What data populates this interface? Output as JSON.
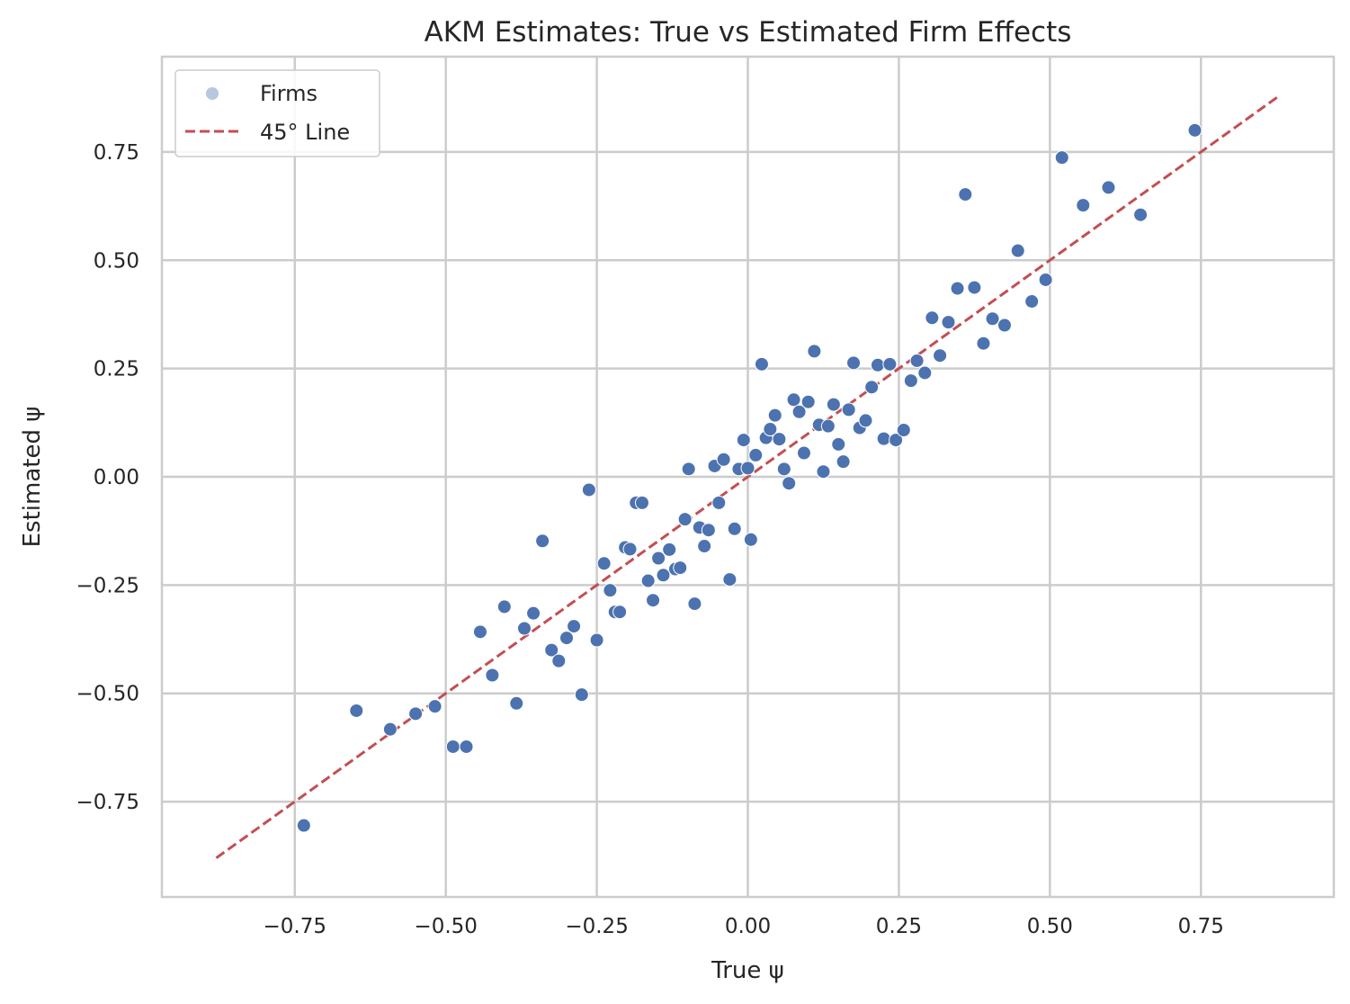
{
  "chart_data": {
    "type": "scatter",
    "title": "AKM Estimates: True vs Estimated Firm Effects",
    "xlabel": "True ψ",
    "ylabel": "Estimated ψ",
    "xlim": [
      -0.97,
      0.97
    ],
    "ylim": [
      -0.97,
      0.97
    ],
    "xticks": [
      -0.75,
      -0.5,
      -0.25,
      0.0,
      0.25,
      0.5,
      0.75
    ],
    "yticks": [
      -0.75,
      -0.5,
      -0.25,
      0.0,
      0.25,
      0.5,
      0.75
    ],
    "xtick_labels": [
      "−0.75",
      "−0.50",
      "−0.25",
      "0.00",
      "0.25",
      "0.50",
      "0.75"
    ],
    "ytick_labels": [
      "−0.75",
      "−0.50",
      "−0.25",
      "0.00",
      "0.25",
      "0.50",
      "0.75"
    ],
    "grid": true,
    "legend_position": "top-left",
    "series": [
      {
        "name": "Firms",
        "kind": "scatter",
        "color": "#4c72b0",
        "points": [
          [
            -0.735,
            -0.805
          ],
          [
            -0.648,
            -0.54
          ],
          [
            -0.592,
            -0.583
          ],
          [
            -0.55,
            -0.547
          ],
          [
            -0.518,
            -0.53
          ],
          [
            -0.488,
            -0.623
          ],
          [
            -0.466,
            -0.623
          ],
          [
            -0.443,
            -0.358
          ],
          [
            -0.423,
            -0.458
          ],
          [
            -0.403,
            -0.3
          ],
          [
            -0.383,
            -0.523
          ],
          [
            -0.37,
            -0.35
          ],
          [
            -0.355,
            -0.315
          ],
          [
            -0.34,
            -0.148
          ],
          [
            -0.325,
            -0.4
          ],
          [
            -0.313,
            -0.425
          ],
          [
            -0.3,
            -0.372
          ],
          [
            -0.288,
            -0.345
          ],
          [
            -0.275,
            -0.503
          ],
          [
            -0.263,
            -0.03
          ],
          [
            -0.25,
            -0.377
          ],
          [
            -0.238,
            -0.2
          ],
          [
            -0.228,
            -0.262
          ],
          [
            -0.22,
            -0.312
          ],
          [
            -0.212,
            -0.312
          ],
          [
            -0.203,
            -0.163
          ],
          [
            -0.195,
            -0.167
          ],
          [
            -0.185,
            -0.06
          ],
          [
            -0.175,
            -0.06
          ],
          [
            -0.165,
            -0.24
          ],
          [
            -0.157,
            -0.285
          ],
          [
            -0.148,
            -0.188
          ],
          [
            -0.14,
            -0.227
          ],
          [
            -0.13,
            -0.168
          ],
          [
            -0.12,
            -0.213
          ],
          [
            -0.112,
            -0.21
          ],
          [
            -0.104,
            -0.098
          ],
          [
            -0.098,
            0.018
          ],
          [
            -0.088,
            -0.293
          ],
          [
            -0.08,
            -0.117
          ],
          [
            -0.072,
            -0.16
          ],
          [
            -0.065,
            -0.123
          ],
          [
            -0.055,
            0.025
          ],
          [
            -0.048,
            -0.06
          ],
          [
            -0.04,
            0.04
          ],
          [
            -0.03,
            -0.237
          ],
          [
            -0.022,
            -0.12
          ],
          [
            -0.015,
            0.018
          ],
          [
            -0.007,
            0.085
          ],
          [
            0.0,
            0.02
          ],
          [
            0.005,
            -0.145
          ],
          [
            0.013,
            0.05
          ],
          [
            0.023,
            0.26
          ],
          [
            0.03,
            0.09
          ],
          [
            0.037,
            0.11
          ],
          [
            0.045,
            0.142
          ],
          [
            0.052,
            0.087
          ],
          [
            0.06,
            0.018
          ],
          [
            0.068,
            -0.015
          ],
          [
            0.076,
            0.178
          ],
          [
            0.085,
            0.15
          ],
          [
            0.093,
            0.055
          ],
          [
            0.1,
            0.173
          ],
          [
            0.11,
            0.29
          ],
          [
            0.118,
            0.12
          ],
          [
            0.125,
            0.012
          ],
          [
            0.133,
            0.117
          ],
          [
            0.142,
            0.167
          ],
          [
            0.15,
            0.075
          ],
          [
            0.158,
            0.035
          ],
          [
            0.167,
            0.155
          ],
          [
            0.175,
            0.263
          ],
          [
            0.185,
            0.113
          ],
          [
            0.195,
            0.13
          ],
          [
            0.205,
            0.207
          ],
          [
            0.215,
            0.258
          ],
          [
            0.225,
            0.088
          ],
          [
            0.235,
            0.26
          ],
          [
            0.245,
            0.085
          ],
          [
            0.258,
            0.108
          ],
          [
            0.27,
            0.222
          ],
          [
            0.28,
            0.268
          ],
          [
            0.293,
            0.24
          ],
          [
            0.305,
            0.367
          ],
          [
            0.318,
            0.28
          ],
          [
            0.332,
            0.357
          ],
          [
            0.347,
            0.435
          ],
          [
            0.36,
            0.652
          ],
          [
            0.375,
            0.437
          ],
          [
            0.39,
            0.308
          ],
          [
            0.405,
            0.365
          ],
          [
            0.425,
            0.35
          ],
          [
            0.447,
            0.522
          ],
          [
            0.47,
            0.405
          ],
          [
            0.493,
            0.455
          ],
          [
            0.52,
            0.737
          ],
          [
            0.555,
            0.627
          ],
          [
            0.597,
            0.668
          ],
          [
            0.65,
            0.605
          ],
          [
            0.74,
            0.8
          ]
        ]
      },
      {
        "name": "45° Line",
        "kind": "line",
        "style": "dashed",
        "color": "#c44e52",
        "points": [
          [
            -0.88,
            -0.88
          ],
          [
            0.88,
            0.88
          ]
        ]
      }
    ]
  }
}
